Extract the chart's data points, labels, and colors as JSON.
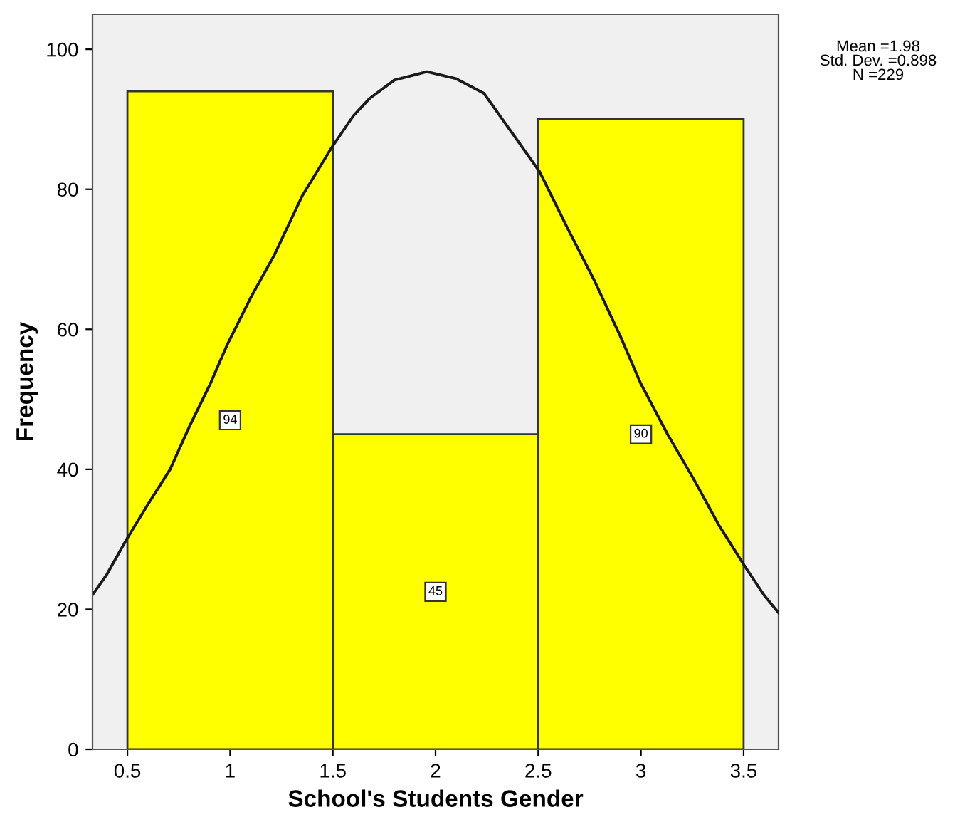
{
  "chart_data": {
    "type": "histogram",
    "xlabel": "School's Students Gender",
    "ylabel": "Frequency",
    "annotations": [
      "Mean =1.98",
      "Std. Dev. =0.898",
      "N =229"
    ],
    "bins": [
      0.5,
      1.5,
      2.5,
      3.5
    ],
    "series": [
      {
        "color": "#ffff00",
        "values": [
          94,
          45,
          90
        ],
        "value_labels": [
          "94",
          "45",
          "90"
        ]
      },
      {
        "type": "line",
        "color": "#1a1a1a",
        "x": [
          0.333,
          0.4,
          0.5,
          0.6,
          0.708,
          0.8,
          0.9,
          0.986,
          1.1,
          1.215,
          1.35,
          1.493,
          1.6,
          1.68,
          1.8,
          1.958,
          2.1,
          2.236,
          2.35,
          2.507,
          2.65,
          2.771,
          2.9,
          3.0,
          3.13,
          3.257,
          3.38,
          3.507,
          3.6,
          3.67
        ],
        "values": [
          22.2,
          25,
          30.2,
          35,
          40,
          46,
          52,
          57.8,
          64.5,
          70.6,
          79,
          85.9,
          90.5,
          93,
          95.6,
          96.8,
          95.8,
          93.7,
          89,
          82.5,
          74,
          67.1,
          59,
          52.2,
          45,
          38.6,
          32,
          26.1,
          22,
          19.5
        ]
      }
    ],
    "xlim": [
      0.33,
      3.67
    ],
    "ylim": [
      0,
      105
    ],
    "xticks": [
      0.5,
      1,
      1.5,
      2,
      2.5,
      3,
      3.5
    ],
    "yticks": [
      0,
      20,
      40,
      60,
      80,
      100
    ],
    "grid": false,
    "marker": "none",
    "line_style": "solid"
  }
}
